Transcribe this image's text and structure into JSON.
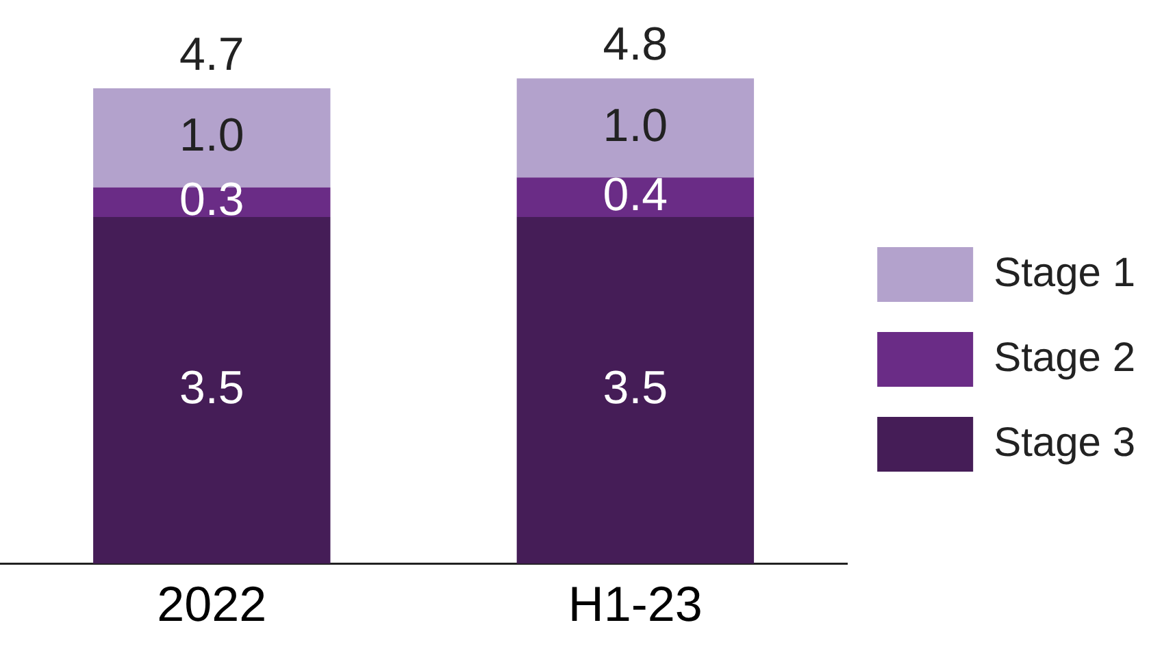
{
  "chart_data": {
    "type": "bar",
    "stacked": true,
    "categories": [
      "2022",
      "H1-23"
    ],
    "series": [
      {
        "name": "Stage 3",
        "color": "#451d57",
        "values": [
          3.5,
          3.5
        ],
        "value_labels": [
          "3.5",
          "3.5"
        ]
      },
      {
        "name": "Stage 2",
        "color": "#6a2c86",
        "values": [
          0.3,
          0.4
        ],
        "value_labels": [
          "0.3",
          "0.4"
        ]
      },
      {
        "name": "Stage 1",
        "color": "#b3a2cc",
        "values": [
          1.0,
          1.0
        ],
        "value_labels": [
          "1.0",
          "1.0"
        ]
      }
    ],
    "totals": [
      "4.7",
      "4.8"
    ],
    "legend": "right",
    "grid": false
  }
}
